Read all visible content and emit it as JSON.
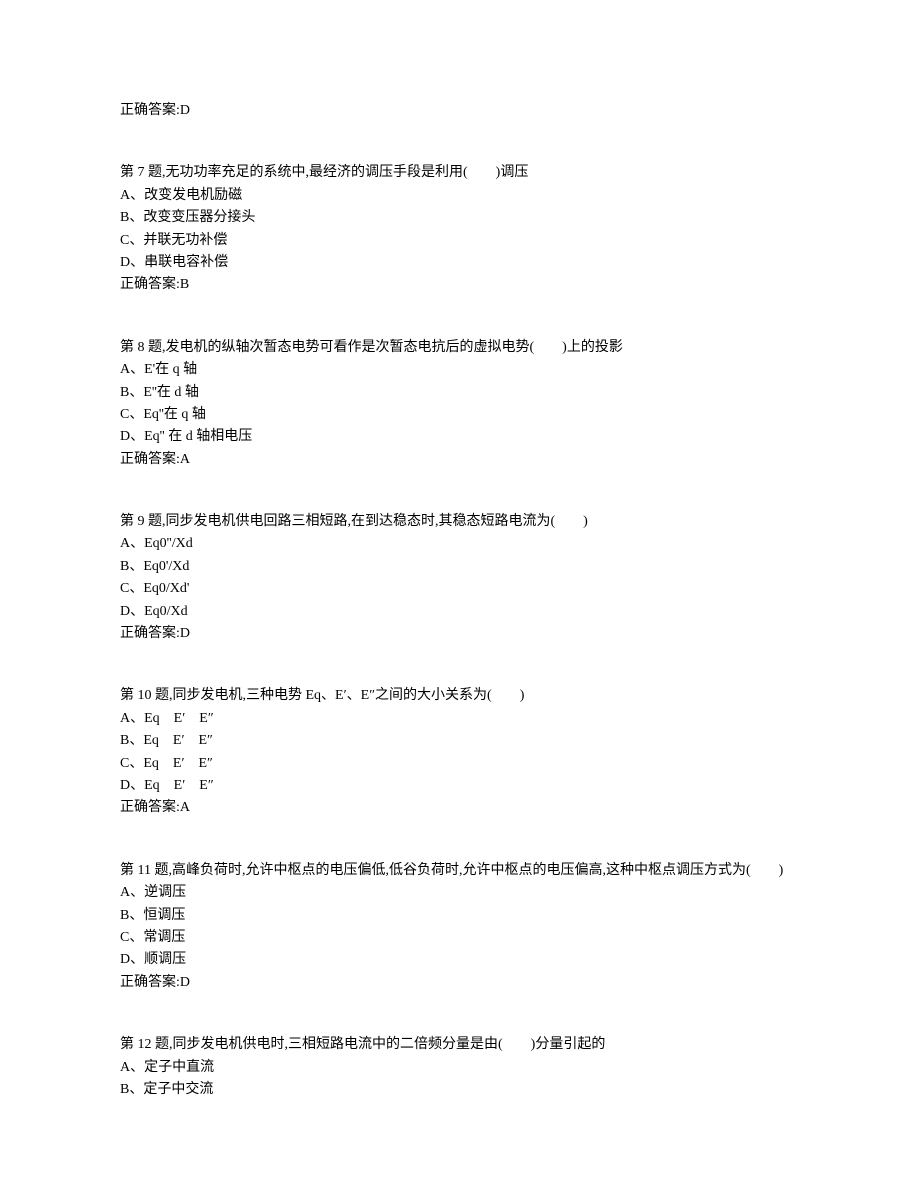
{
  "answer_top": "正确答案:D",
  "questions": [
    {
      "header": "第 7 题,无功功率充足的系统中,最经济的调压手段是利用(　　)调压",
      "options": [
        "A、改变发电机励磁",
        "B、改变变压器分接头",
        "C、并联无功补偿",
        "D、串联电容补偿"
      ],
      "answer": "正确答案:B"
    },
    {
      "header": "第 8 题,发电机的纵轴次暂态电势可看作是次暂态电抗后的虚拟电势(　　)上的投影",
      "options": [
        "A、E'在 q 轴",
        "B、E''在 d 轴",
        "C、Eq''在 q 轴",
        "D、Eq'' 在 d 轴相电压"
      ],
      "answer": "正确答案:A"
    },
    {
      "header": "第 9 题,同步发电机供电回路三相短路,在到达稳态时,其稳态短路电流为(　　)",
      "options": [
        "A、Eq0''/Xd",
        "B、Eq0'/Xd",
        "C、Eq0/Xd'",
        "D、Eq0/Xd"
      ],
      "answer": "正确答案:D"
    },
    {
      "header": "第 10 题,同步发电机,三种电势 Eq、E′、E″之间的大小关系为(　　)",
      "options": [
        "A、Eq　E′　E″",
        "B、Eq　E′　E″",
        "C、Eq　E′　E″",
        "D、Eq　E′　E″"
      ],
      "answer": "正确答案:A"
    },
    {
      "header": "第 11 题,高峰负荷时,允许中枢点的电压偏低,低谷负荷时,允许中枢点的电压偏高,这种中枢点调压方式为(　　)",
      "options": [
        "A、逆调压",
        "B、恒调压",
        "C、常调压",
        "D、顺调压"
      ],
      "answer": "正确答案:D"
    },
    {
      "header": "第 12 题,同步发电机供电时,三相短路电流中的二倍频分量是由(　　)分量引起的",
      "options": [
        "A、定子中直流",
        "B、定子中交流"
      ],
      "answer": ""
    }
  ]
}
